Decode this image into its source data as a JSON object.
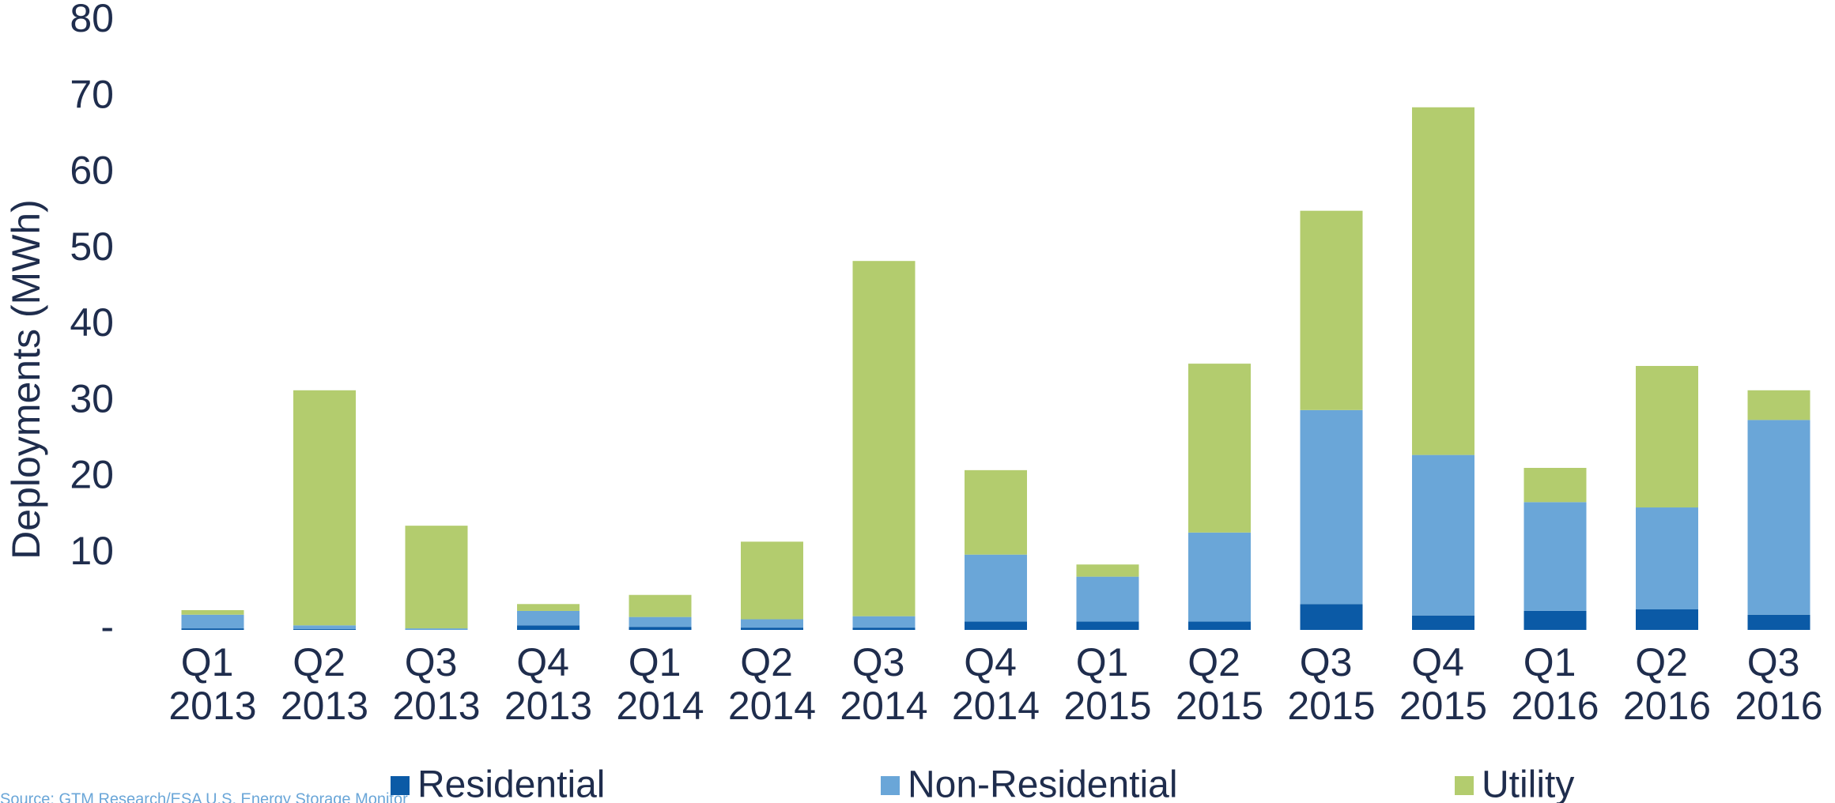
{
  "chart_data": {
    "type": "stacked_bar",
    "y_axis_label": "Deployments (MWh)",
    "source": "Source: GTM Research/ESA U.S. Energy Storage Monitor",
    "categories": [
      "Q1 2013",
      "Q2 2013",
      "Q3 2013",
      "Q4 2013",
      "Q1 2014",
      "Q2 2014",
      "Q3 2014",
      "Q4 2014",
      "Q1 2015",
      "Q2 2015",
      "Q3 2015",
      "Q4 2015",
      "Q1 2016",
      "Q2 2016",
      "Q3 2016"
    ],
    "series": [
      {
        "name": "Residential",
        "color": "#0b5aa6",
        "values": [
          0.2,
          0.1,
          0,
          0.6,
          0.4,
          0.3,
          0.3,
          1.1,
          1.1,
          1.1,
          3.4,
          1.9,
          2.5,
          2.7,
          2.0
        ]
      },
      {
        "name": "Non-Residential",
        "color": "#6aa6d8",
        "values": [
          1.8,
          0.5,
          0.2,
          1.9,
          1.3,
          1.1,
          1.5,
          8.8,
          5.9,
          11.7,
          25.5,
          21.1,
          14.3,
          13.4,
          25.6
        ]
      },
      {
        "name": "Utility",
        "color": "#b3cc6e",
        "values": [
          0.6,
          30.9,
          13.5,
          0.9,
          2.9,
          10.2,
          46.7,
          11.1,
          1.6,
          22.2,
          26.2,
          45.7,
          4.5,
          18.6,
          3.9
        ]
      }
    ],
    "ylim": [
      0,
      80
    ],
    "yticks": [
      {
        "value": 0,
        "label": "-"
      },
      10,
      20,
      30,
      40,
      50,
      60,
      70,
      80
    ],
    "grid": false,
    "legend": "bottom"
  }
}
